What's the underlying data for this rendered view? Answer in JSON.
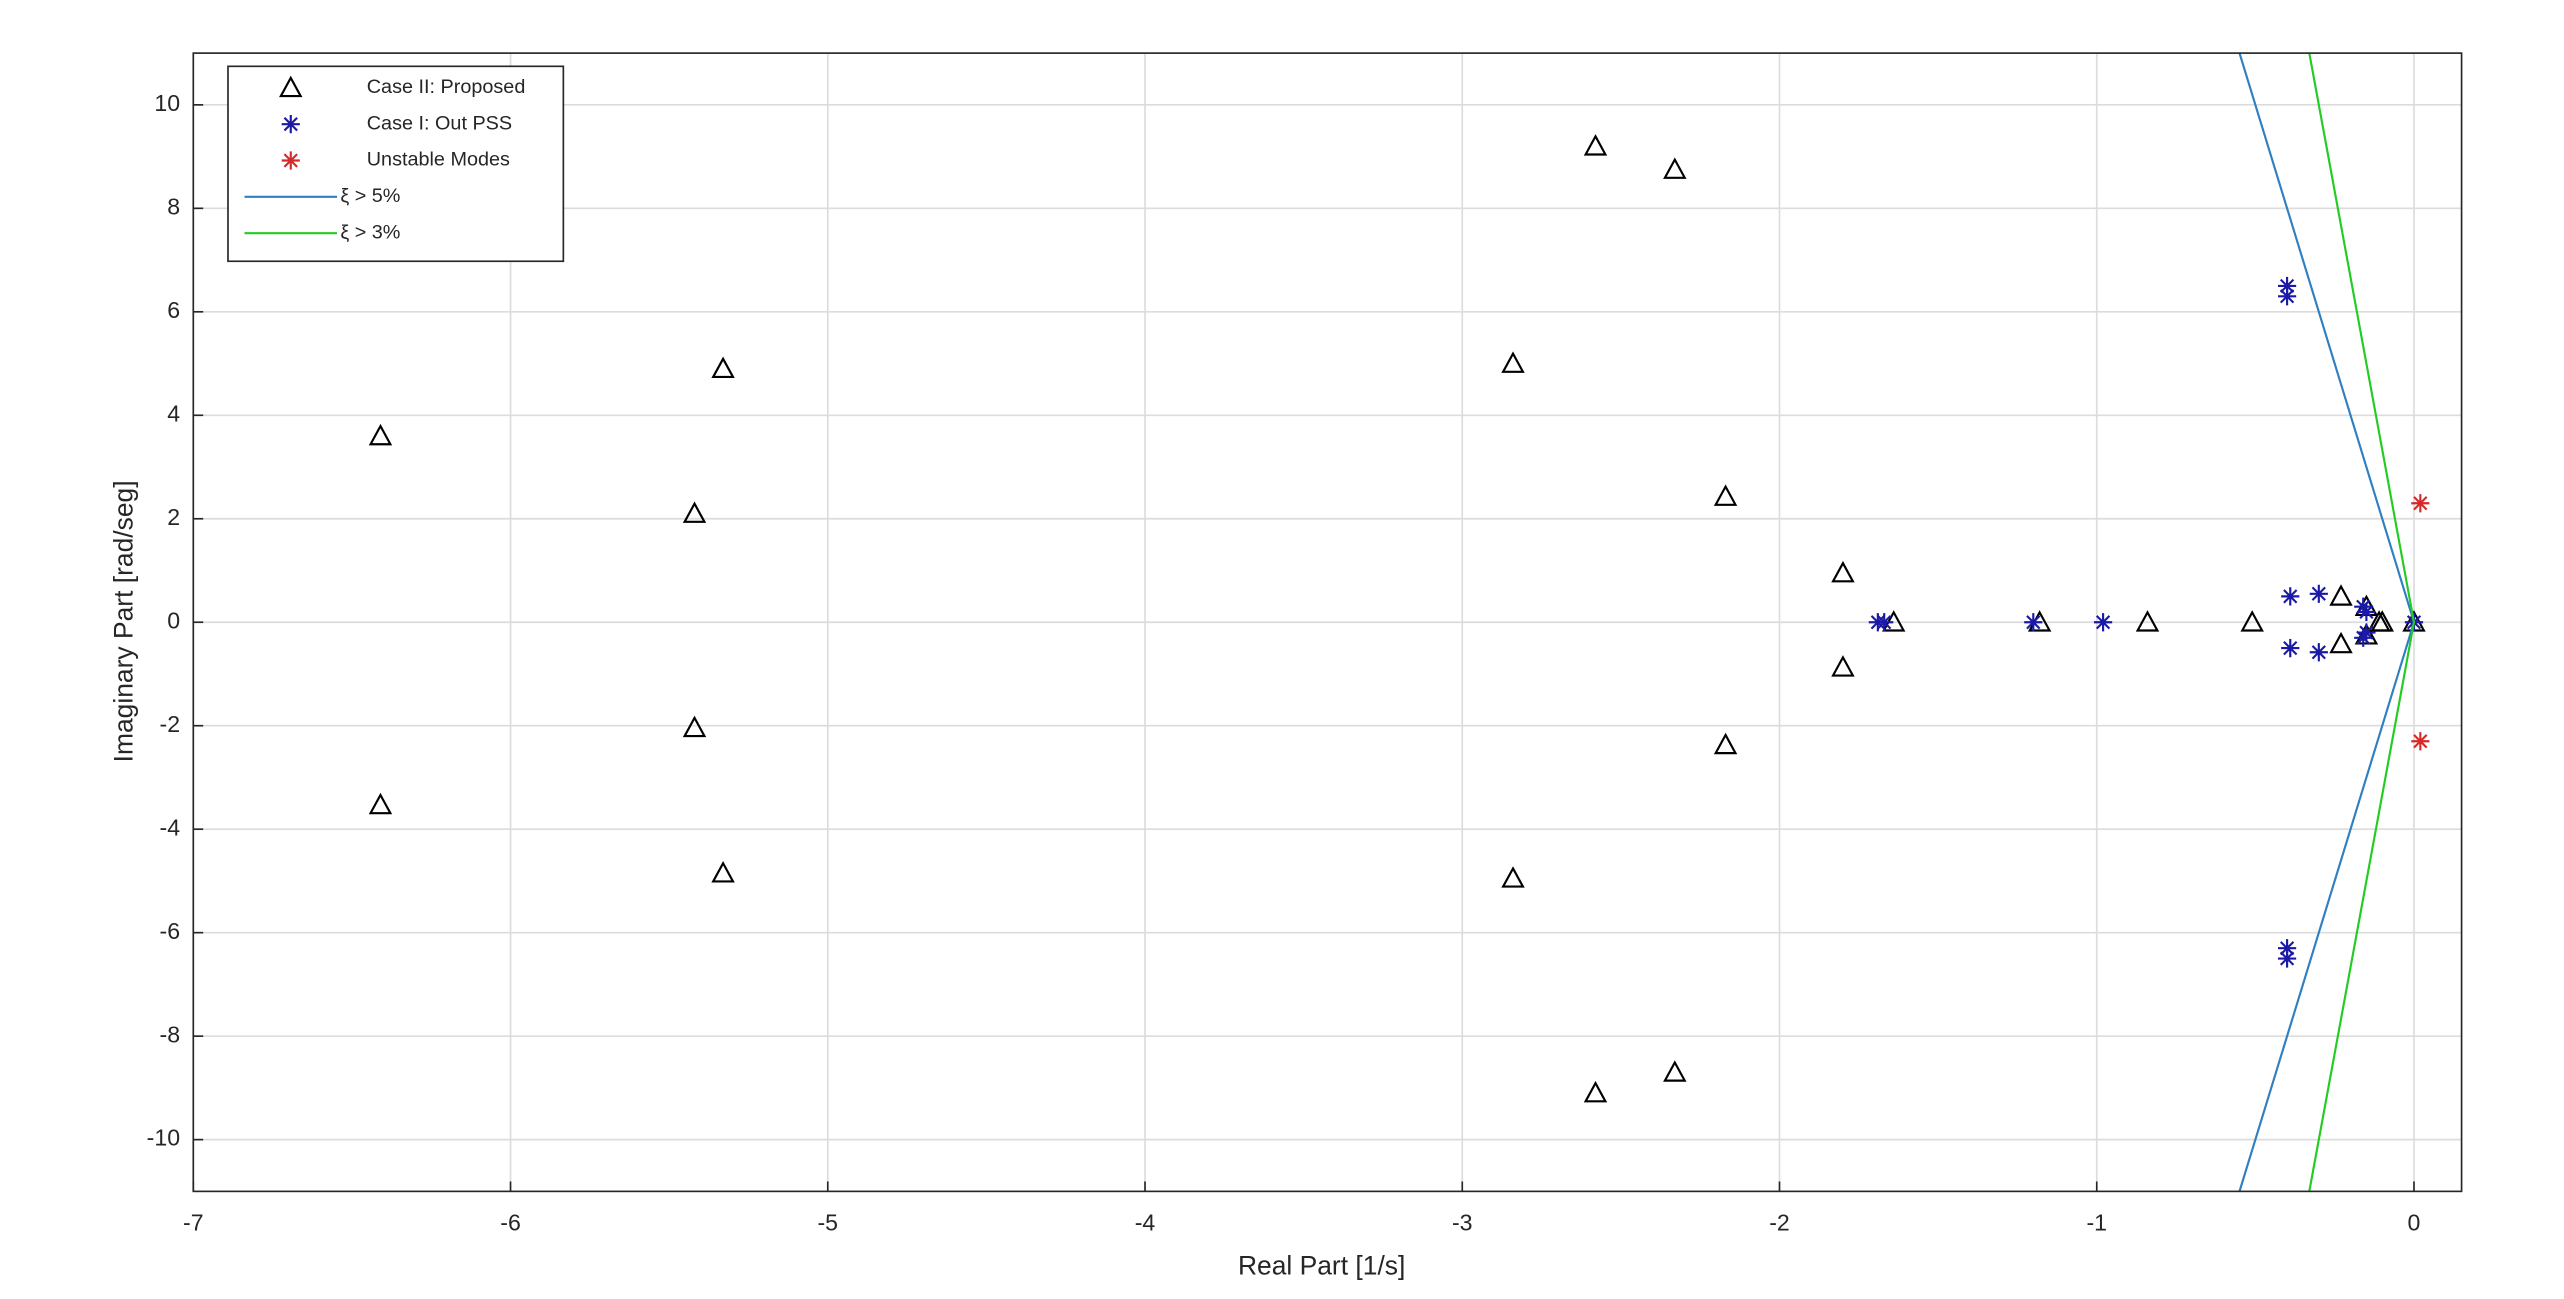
{
  "chart_data": {
    "type": "scatter",
    "xlabel": "Real Part [1/s]",
    "ylabel": "Imaginary Part [rad/seg]",
    "xlim": [
      -7,
      0.15
    ],
    "ylim": [
      -11,
      11
    ],
    "xticks": [
      -7,
      -6,
      -5,
      -4,
      -3,
      -2,
      -1,
      0
    ],
    "yticks": [
      -10,
      -8,
      -6,
      -4,
      -2,
      0,
      2,
      4,
      6,
      8,
      10
    ],
    "grid": true,
    "legend": "upper left",
    "series": [
      {
        "name": "Case II: Proposed",
        "color": "#000000",
        "marker": "triangle",
        "x": [
          -6.41,
          -6.41,
          -5.42,
          -5.42,
          -5.33,
          -5.33,
          -2.84,
          -2.84,
          -2.58,
          -2.58,
          -2.33,
          -2.33,
          -2.17,
          -2.17,
          -1.8,
          -1.8,
          -1.64,
          -1.18,
          -0.84,
          -0.51,
          -0.23,
          -0.23,
          -0.15,
          -0.15,
          -0.11,
          -0.1,
          0
        ],
        "y": [
          3.6,
          -3.53,
          2.1,
          -2.04,
          4.9,
          -4.85,
          5.0,
          -4.95,
          9.2,
          -9.1,
          8.75,
          -8.7,
          2.43,
          -2.37,
          0.95,
          -0.87,
          0,
          0,
          0,
          0,
          0.5,
          -0.42,
          0.3,
          -0.25,
          0,
          0,
          0
        ]
      },
      {
        "name": "Case I: Out PSS",
        "color": "#1a1aa6",
        "marker": "star",
        "x": [
          -0.4,
          -0.4,
          -0.4,
          -0.4,
          -0.39,
          -0.39,
          -0.3,
          -0.3,
          -0.16,
          -0.16,
          -0.15,
          -0.15,
          -1.67,
          -1.69,
          -1.2,
          -0.98,
          0
        ],
        "y": [
          6.5,
          6.3,
          -6.3,
          -6.5,
          0.5,
          -0.5,
          0.55,
          -0.58,
          0.3,
          -0.3,
          0.2,
          -0.2,
          0,
          0,
          0,
          0,
          0
        ]
      },
      {
        "name": "Unstable Modes",
        "color": "#d42a2a",
        "marker": "star",
        "x": [
          0.02,
          0.02
        ],
        "y": [
          2.3,
          -2.3
        ]
      },
      {
        "name": "ξ > 5%",
        "color": "#2f7fc1",
        "marker": "line",
        "x": [
          -0.55,
          0,
          -0.55
        ],
        "y": [
          11,
          0,
          -11
        ]
      },
      {
        "name": "ξ > 3%",
        "color": "#22cc22",
        "marker": "line",
        "x": [
          -0.33,
          0,
          -0.33
        ],
        "y": [
          11,
          0,
          -11
        ]
      }
    ]
  }
}
